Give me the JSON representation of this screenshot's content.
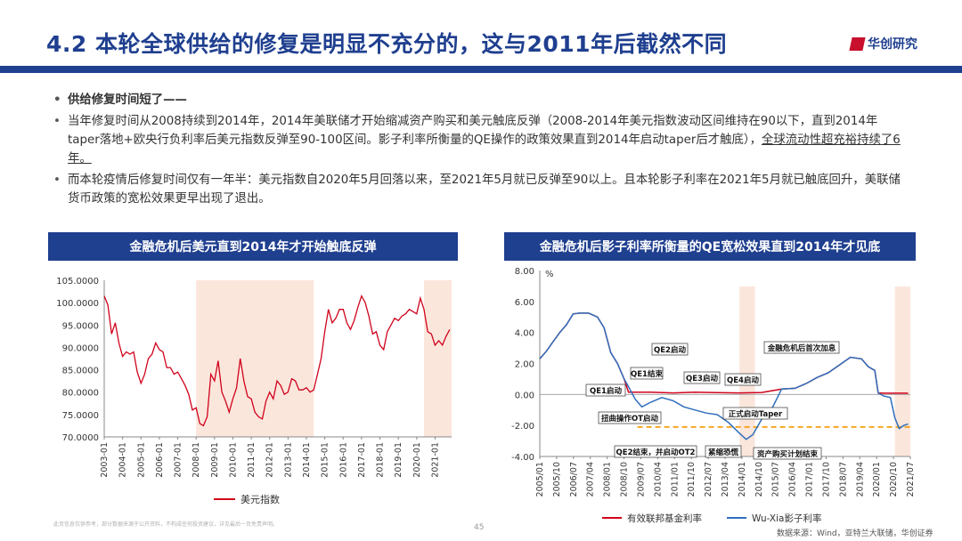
{
  "header": {
    "title": "4.2 本轮全球供给的修复是明显不充分的，这与2011年后截然不同",
    "logo_text": "华创研究"
  },
  "bullets": {
    "b1": "供给修复时间短了——",
    "b2_pre": "当年修复时间从2008持续到2014年，2014年美联储才开始缩减资产购买和美元触底反弹（2008-2014年美元指数波动区间维持在90以下，直到2014年taper落地+欧央行负利率后美元指数反弹至90-100区间。影子利率所衡量的QE操作的政策效果直到2014年启动taper后才触底），",
    "b2_underline": "全球流动性超充裕持续了6年。",
    "b3": "而本轮疫情后修复时间仅有一年半：美元指数自2020年5月回落以来，至2021年5月就已反弹至90以上。且本轮影子利率在2021年5月就已触底回升，美联储货币政策的宽松效果更早出现了退出。"
  },
  "footer": {
    "disclaimer": "此页信息仅供参考，部分数据来源于公开资料，不构成任何投资建议，详见最后一页免责声明。",
    "page_number": "45",
    "source": "数据来源：Wind，亚特兰大联储，华创证券"
  },
  "chart_data": [
    {
      "type": "line",
      "title": "金融危机后美元直到2014年才开始触底反弹",
      "ylim": [
        70,
        105
      ],
      "yticks": [
        "105.0000",
        "100.0000",
        "95.0000",
        "90.0000",
        "85.0000",
        "80.0000",
        "75.0000",
        "70.0000"
      ],
      "xlim": [
        2003.0,
        2021.9
      ],
      "xticks": [
        "2003-01",
        "2004-01",
        "2005-01",
        "2006-01",
        "2007-01",
        "2008-01",
        "2009-01",
        "2010-01",
        "2011-01",
        "2012-01",
        "2013-01",
        "2014-01",
        "2015-01",
        "2016-01",
        "2017-01",
        "2018-01",
        "2019-01",
        "2020-01",
        "2021-01"
      ],
      "shaded_periods": [
        [
          2008.0,
          2014.4
        ],
        [
          2020.4,
          2021.9
        ]
      ],
      "series": [
        {
          "name": "美元指数",
          "color": "#d0021b",
          "x": [
            2003.0,
            2003.2,
            2003.4,
            2003.6,
            2003.8,
            2004.0,
            2004.2,
            2004.4,
            2004.6,
            2004.8,
            2005.0,
            2005.2,
            2005.4,
            2005.6,
            2005.8,
            2006.0,
            2006.2,
            2006.4,
            2006.6,
            2006.8,
            2007.0,
            2007.2,
            2007.4,
            2007.6,
            2007.8,
            2008.0,
            2008.2,
            2008.4,
            2008.6,
            2008.8,
            2009.0,
            2009.2,
            2009.4,
            2009.6,
            2009.8,
            2010.0,
            2010.2,
            2010.4,
            2010.6,
            2010.8,
            2011.0,
            2011.2,
            2011.4,
            2011.6,
            2011.8,
            2012.0,
            2012.2,
            2012.4,
            2012.6,
            2012.8,
            2013.0,
            2013.2,
            2013.4,
            2013.6,
            2013.8,
            2014.0,
            2014.2,
            2014.4,
            2014.6,
            2014.8,
            2015.0,
            2015.2,
            2015.4,
            2015.6,
            2015.8,
            2016.0,
            2016.2,
            2016.4,
            2016.6,
            2016.8,
            2017.0,
            2017.2,
            2017.4,
            2017.6,
            2017.8,
            2018.0,
            2018.2,
            2018.4,
            2018.6,
            2018.8,
            2019.0,
            2019.2,
            2019.4,
            2019.6,
            2019.8,
            2020.0,
            2020.2,
            2020.4,
            2020.6,
            2020.8,
            2021.0,
            2021.2,
            2021.4,
            2021.6,
            2021.8
          ],
          "values": [
            101.5,
            99.5,
            93.0,
            95.5,
            91.0,
            88.0,
            89.0,
            88.5,
            89.0,
            84.5,
            82.0,
            84.0,
            87.5,
            88.5,
            91.0,
            89.5,
            89.0,
            85.5,
            85.5,
            84.0,
            84.5,
            83.0,
            81.5,
            79.5,
            76.0,
            76.5,
            73.0,
            72.5,
            74.5,
            84.0,
            82.5,
            87.0,
            80.0,
            78.0,
            75.5,
            78.5,
            81.0,
            87.5,
            82.5,
            79.0,
            78.5,
            75.5,
            74.5,
            74.0,
            78.0,
            80.0,
            78.5,
            82.5,
            81.5,
            79.5,
            80.0,
            83.0,
            82.5,
            80.5,
            80.5,
            81.0,
            80.0,
            80.5,
            84.0,
            87.5,
            93.5,
            98.5,
            95.5,
            96.5,
            98.5,
            98.5,
            95.5,
            94.0,
            96.0,
            99.0,
            101.5,
            100.0,
            97.0,
            93.0,
            93.5,
            90.5,
            89.5,
            93.5,
            95.0,
            96.5,
            96.0,
            97.0,
            97.5,
            98.5,
            98.0,
            97.5,
            101.0,
            98.5,
            93.5,
            93.0,
            90.5,
            91.5,
            90.5,
            92.5,
            94.0
          ]
        }
      ]
    },
    {
      "type": "line",
      "title": "金融危机后影子利率所衡量的QE宽松效果直到2014年才见底",
      "ylabel": "%",
      "ylim": [
        -4,
        8
      ],
      "yticks": [
        "8.00",
        "6.00",
        "4.00",
        "2.00",
        "0.00",
        "-2.00",
        "-4.00"
      ],
      "xlim": [
        2005.0,
        2021.7
      ],
      "xticks": [
        "2005/01",
        "2005/10",
        "2006/07",
        "2007/04",
        "2008/01",
        "2008/10",
        "2009/07",
        "2010/04",
        "2011/01",
        "2011/10",
        "2012/07",
        "2013/04",
        "2014/01",
        "2014/10",
        "2015/07",
        "2016/04",
        "2017/01",
        "2017/10",
        "2018/07",
        "2019/04",
        "2020/01",
        "2020/10",
        "2021/07"
      ],
      "shaded_periods": [
        [
          2014.0,
          2014.7
        ],
        [
          2021.0,
          2021.7
        ]
      ],
      "reference_line": {
        "y": -2.1,
        "color": "#f5a623"
      },
      "annotations": [
        "QE1启动",
        "QE1结束",
        "QE2启动",
        "QE3启动",
        "QE4启动",
        "扭曲操作OT启动",
        "QE2结束，并启动OT2",
        "紧缩恐慌",
        "正式启动Taper",
        "资产购买计划结束",
        "金融危机后首次加息"
      ],
      "series": [
        {
          "name": "有效联邦基金利率",
          "color": "#d0021b",
          "x": [
            2005.0,
            2005.3,
            2005.6,
            2005.9,
            2006.2,
            2006.5,
            2006.8,
            2007.2,
            2007.6,
            2007.9,
            2008.2,
            2008.5,
            2008.8,
            2009.0,
            2010.0,
            2011.0,
            2012.0,
            2013.0,
            2014.0,
            2015.0,
            2015.9,
            2016.5,
            2017.0,
            2017.5,
            2018.0,
            2018.5,
            2019.0,
            2019.5,
            2019.8,
            2020.1,
            2020.25,
            2020.5,
            2021.0,
            2021.6
          ],
          "values": [
            2.3,
            2.8,
            3.4,
            4.0,
            4.5,
            5.2,
            5.25,
            5.25,
            5.0,
            4.3,
            2.7,
            2.0,
            1.0,
            0.15,
            0.15,
            0.1,
            0.15,
            0.12,
            0.1,
            0.13,
            0.35,
            0.4,
            0.7,
            1.1,
            1.4,
            1.9,
            2.4,
            2.3,
            1.8,
            1.55,
            0.1,
            0.08,
            0.08,
            0.08
          ]
        },
        {
          "name": "Wu-Xia影子利率",
          "color": "#2f6fbd",
          "x": [
            2005.0,
            2005.3,
            2005.6,
            2005.9,
            2006.2,
            2006.5,
            2006.8,
            2007.2,
            2007.6,
            2007.9,
            2008.2,
            2008.5,
            2008.8,
            2009.0,
            2009.3,
            2009.6,
            2010.0,
            2010.5,
            2011.0,
            2011.5,
            2012.0,
            2012.5,
            2013.0,
            2013.5,
            2014.0,
            2014.3,
            2014.6,
            2015.0,
            2015.5,
            2015.9,
            2016.5,
            2017.0,
            2017.5,
            2018.0,
            2018.5,
            2019.0,
            2019.5,
            2019.8,
            2020.1,
            2020.25,
            2020.5,
            2020.8,
            2021.0,
            2021.2,
            2021.4,
            2021.6
          ],
          "values": [
            2.3,
            2.8,
            3.4,
            4.0,
            4.5,
            5.2,
            5.25,
            5.25,
            5.0,
            4.3,
            2.7,
            2.0,
            1.0,
            0.5,
            -0.3,
            -0.8,
            -0.5,
            -0.2,
            -0.4,
            -0.8,
            -1.0,
            -1.2,
            -1.3,
            -1.8,
            -2.5,
            -2.9,
            -2.6,
            -1.6,
            -0.8,
            0.35,
            0.4,
            0.7,
            1.1,
            1.4,
            1.9,
            2.4,
            2.3,
            1.8,
            1.55,
            0.1,
            -0.1,
            -0.2,
            -1.5,
            -2.2,
            -2.0,
            -1.9
          ]
        }
      ]
    }
  ]
}
